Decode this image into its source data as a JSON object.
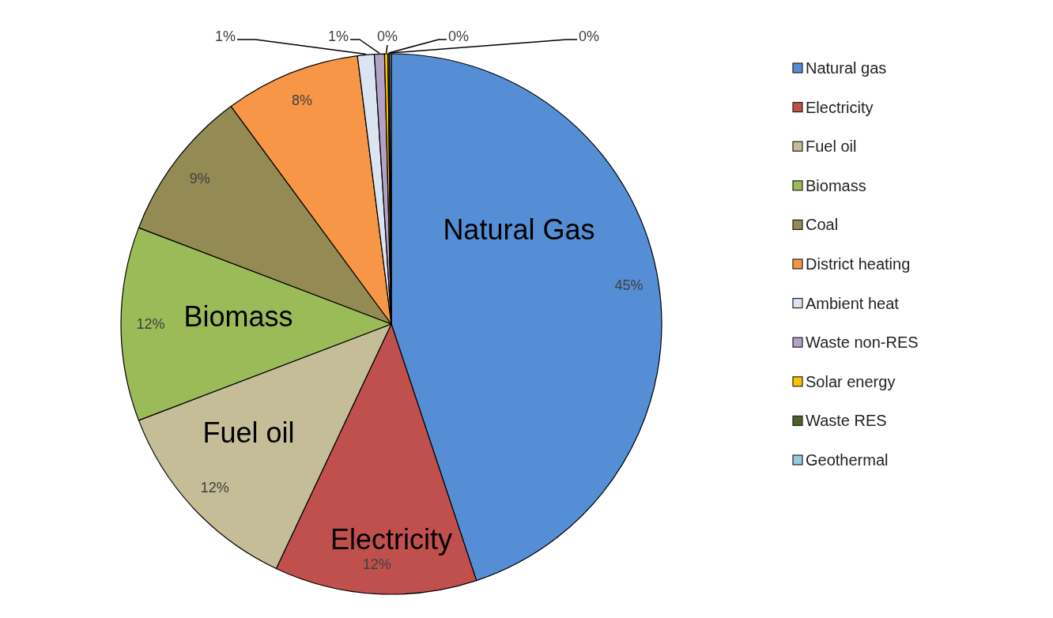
{
  "chart_data": {
    "type": "pie",
    "categories": [
      "Natural gas",
      "Electricity",
      "Fuel oil",
      "Biomass",
      "Coal",
      "District heating",
      "Ambient heat",
      "Waste non-RES",
      "Solar energy",
      "Waste RES",
      "Geothermal"
    ],
    "values": [
      44.9,
      12.1,
      12.2,
      11.6,
      9.1,
      8.1,
      1.0,
      0.6,
      0.2,
      0.1,
      0.1
    ],
    "colors": [
      "#558ed5",
      "#c0504d",
      "#c4bd97",
      "#9bbb59",
      "#948a54",
      "#f79646",
      "#dbe5f1",
      "#b3a2c7",
      "#ffc000",
      "#4f6228",
      "#93cddd"
    ],
    "value_labels": [
      "45%",
      "12%",
      "12%",
      "12%",
      "9%",
      "8%",
      "1%",
      "1%",
      "0%",
      "0%",
      "0%"
    ],
    "annotations": [
      "Natural Gas",
      "Biomass",
      "Fuel oil",
      "Electricity"
    ],
    "legend": "right"
  }
}
